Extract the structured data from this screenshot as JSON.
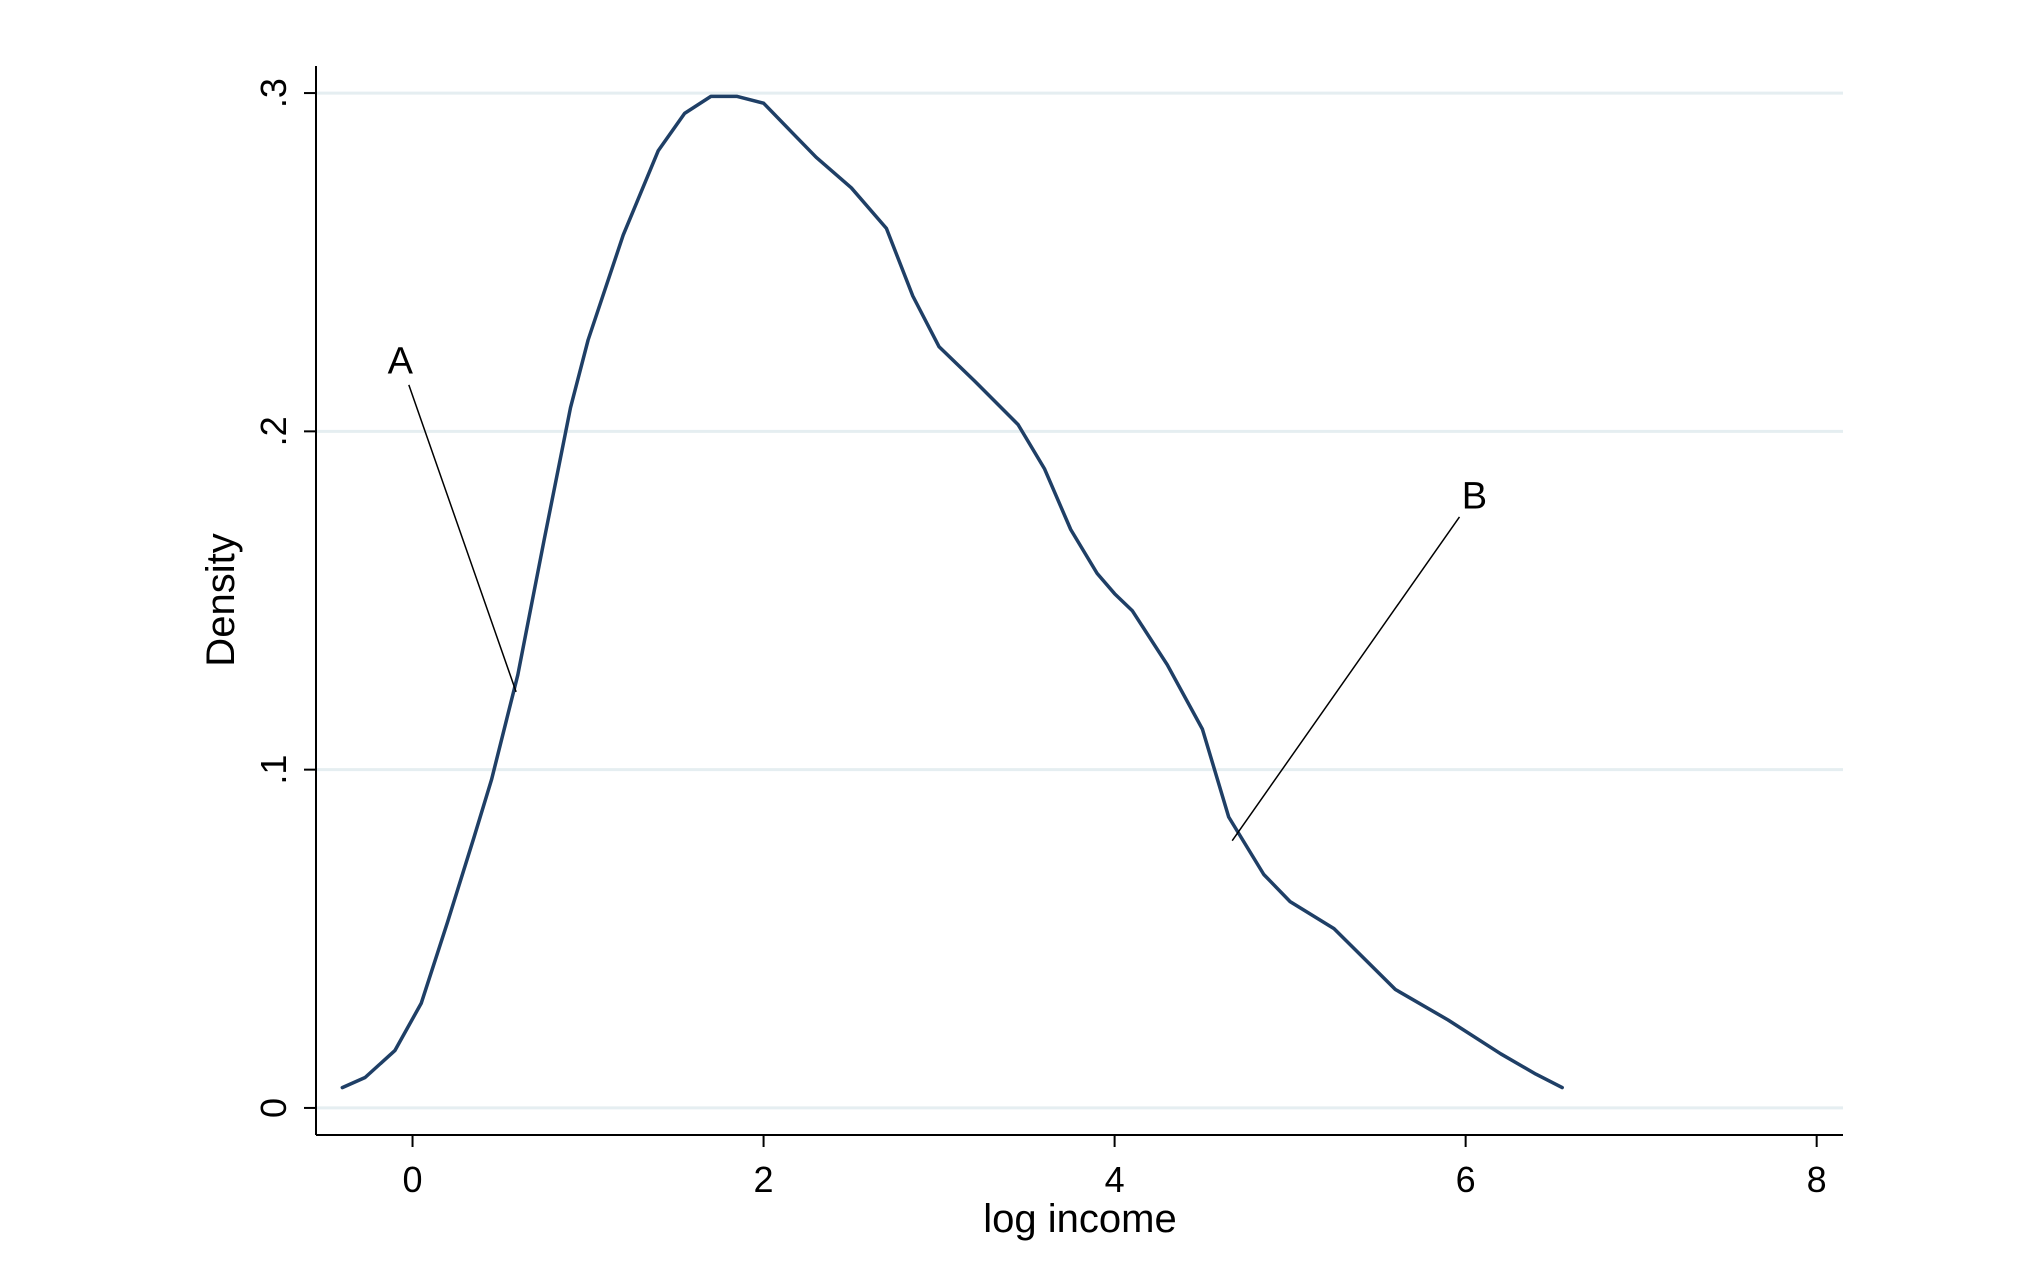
{
  "chart_data": {
    "type": "line",
    "title": "",
    "xlabel": "log income",
    "ylabel": "Density",
    "xlim": [
      -0.55,
      8.15
    ],
    "ylim": [
      -0.008,
      0.308
    ],
    "xticks": [
      0,
      2,
      4,
      6,
      8
    ],
    "xtick_labels": [
      "0",
      "2",
      "4",
      "6",
      "8"
    ],
    "yticks": [
      0,
      0.1,
      0.2,
      0.3
    ],
    "ytick_labels": [
      "0",
      ".1",
      ".2",
      ".3"
    ],
    "grid": true,
    "series": [
      {
        "color": "#1f3f66",
        "x": [
          -0.4,
          -0.27,
          -0.1,
          0.05,
          0.2,
          0.35,
          0.45,
          0.6,
          0.75,
          0.9,
          1.0,
          1.2,
          1.4,
          1.55,
          1.7,
          1.85,
          2.0,
          2.15,
          2.3,
          2.5,
          2.7,
          2.85,
          3.0,
          3.2,
          3.45,
          3.6,
          3.75,
          3.9,
          4.0,
          4.1,
          4.3,
          4.5,
          4.65,
          4.85,
          5.0,
          5.25,
          5.6,
          5.9,
          6.2,
          6.4,
          6.55
        ],
        "y": [
          0.006,
          0.009,
          0.017,
          0.031,
          0.055,
          0.08,
          0.097,
          0.128,
          0.168,
          0.207,
          0.227,
          0.258,
          0.283,
          0.294,
          0.299,
          0.299,
          0.297,
          0.289,
          0.281,
          0.272,
          0.26,
          0.24,
          0.225,
          0.215,
          0.202,
          0.189,
          0.171,
          0.158,
          0.152,
          0.147,
          0.131,
          0.112,
          0.086,
          0.069,
          0.061,
          0.053,
          0.035,
          0.026,
          0.016,
          0.01,
          0.006
        ]
      }
    ],
    "annotations": [
      {
        "text": "A",
        "x": -0.07,
        "y": 0.221,
        "point_x": 0.59,
        "point_y": 0.123
      },
      {
        "text": "B",
        "x": 6.05,
        "y": 0.181,
        "point_x": 4.67,
        "point_y": 0.079
      }
    ],
    "colors": {
      "line": "#1f3f66",
      "grid": "#e5eef1",
      "axis": "#000000",
      "background": "#ffffff"
    }
  }
}
